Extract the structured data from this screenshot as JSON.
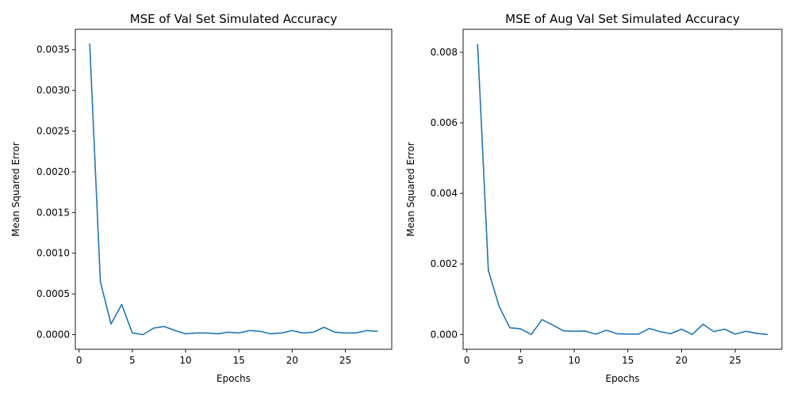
{
  "chart_data": [
    {
      "type": "line",
      "title": "MSE of Val Set Simulated Accuracy",
      "xlabel": "Epochs",
      "ylabel": "Mean Squared Error",
      "xlim": [
        -0.35,
        29.35
      ],
      "ylim": [
        -0.00018,
        0.00375
      ],
      "xticks": [
        0,
        5,
        10,
        15,
        20,
        25
      ],
      "xtick_labels": [
        "0",
        "5",
        "10",
        "15",
        "20",
        "25"
      ],
      "yticks": [
        0,
        0.0005,
        0.001,
        0.0015,
        0.002,
        0.0025,
        0.003,
        0.0035
      ],
      "ytick_labels": [
        "0.0000",
        "0.0005",
        "0.0010",
        "0.0015",
        "0.0020",
        "0.0025",
        "0.0030",
        "0.0035"
      ],
      "grid": false,
      "color": "#1f77b4",
      "x": [
        1,
        2,
        3,
        4,
        5,
        6,
        7,
        8,
        9,
        10,
        11,
        12,
        13,
        14,
        15,
        16,
        17,
        18,
        19,
        20,
        21,
        22,
        23,
        24,
        25,
        26,
        27,
        28
      ],
      "values": [
        0.00357,
        0.00065,
        0.00013,
        0.00037,
        2e-05,
        0.0,
        8e-05,
        0.0001,
        5e-05,
        1e-05,
        2e-05,
        2e-05,
        1e-05,
        3e-05,
        2e-05,
        5e-05,
        4e-05,
        1e-05,
        2e-05,
        5e-05,
        2e-05,
        3e-05,
        9e-05,
        3e-05,
        2e-05,
        2e-05,
        5e-05,
        4e-05
      ]
    },
    {
      "type": "line",
      "title": "MSE of Aug Val Set Simulated Accuracy",
      "xlabel": "Epochs",
      "ylabel": "Mean Squared Error",
      "xlim": [
        -0.35,
        29.35
      ],
      "ylim": [
        -0.00042,
        0.00865
      ],
      "xticks": [
        0,
        5,
        10,
        15,
        20,
        25
      ],
      "xtick_labels": [
        "0",
        "5",
        "10",
        "15",
        "20",
        "25"
      ],
      "yticks": [
        0,
        0.002,
        0.004,
        0.006,
        0.008
      ],
      "ytick_labels": [
        "0.000",
        "0.002",
        "0.004",
        "0.006",
        "0.008"
      ],
      "grid": false,
      "color": "#1f77b4",
      "x": [
        1,
        2,
        3,
        4,
        5,
        6,
        7,
        8,
        9,
        10,
        11,
        12,
        13,
        14,
        15,
        16,
        17,
        18,
        19,
        20,
        21,
        22,
        23,
        24,
        25,
        26,
        27,
        28
      ],
      "values": [
        0.00822,
        0.00182,
        0.0008,
        0.00019,
        0.00016,
        0.0,
        0.00042,
        0.00027,
        0.0001,
        9e-05,
        0.0001,
        1e-05,
        0.00012,
        2e-05,
        1e-05,
        1e-05,
        0.00017,
        8e-05,
        2e-05,
        0.00015,
        0.0,
        0.00029,
        8e-05,
        0.00015,
        1e-05,
        9e-05,
        3e-05,
        0.0
      ]
    }
  ]
}
